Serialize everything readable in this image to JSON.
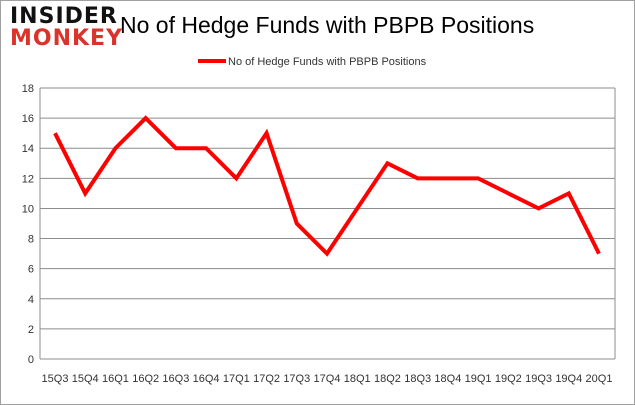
{
  "logo": {
    "line1": "INSIDER",
    "line2": "MONKEY"
  },
  "chart_data": {
    "type": "line",
    "title": "No of Hedge Funds with PBPB Positions",
    "xlabel": "",
    "ylabel": "",
    "categories": [
      "15Q3",
      "15Q4",
      "16Q1",
      "16Q2",
      "16Q3",
      "16Q4",
      "17Q1",
      "17Q2",
      "17Q3",
      "17Q4",
      "18Q1",
      "18Q2",
      "18Q3",
      "18Q4",
      "19Q1",
      "19Q2",
      "19Q3",
      "19Q4",
      "20Q1"
    ],
    "series": [
      {
        "name": "No of Hedge Funds with PBPB Positions",
        "color": "#ff0000",
        "values": [
          15,
          11,
          14,
          16,
          14,
          14,
          12,
          15,
          9,
          7,
          10,
          13,
          12,
          12,
          12,
          11,
          10,
          11,
          7
        ]
      }
    ],
    "ylim": [
      0,
      18
    ],
    "yticks": [
      0,
      2,
      4,
      6,
      8,
      10,
      12,
      14,
      16,
      18
    ],
    "grid": true,
    "legend": "top-center"
  }
}
